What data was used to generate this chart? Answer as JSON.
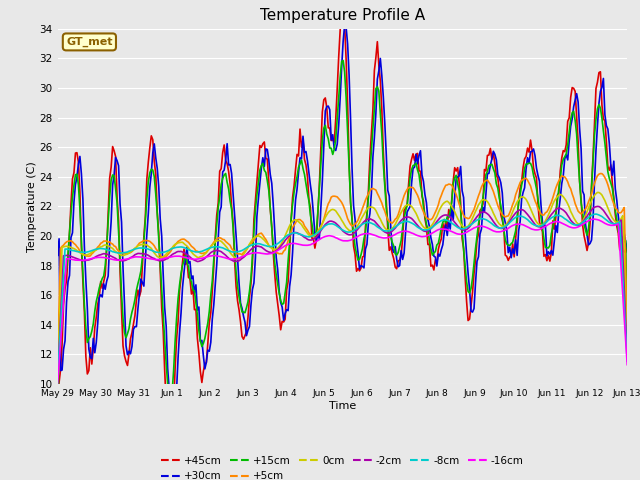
{
  "title": "Temperature Profile A",
  "xlabel": "Time",
  "ylabel": "Temperature (C)",
  "ylim": [
    10,
    34
  ],
  "yticks": [
    10,
    12,
    14,
    16,
    18,
    20,
    22,
    24,
    26,
    28,
    30,
    32,
    34
  ],
  "annotation_text": "GT_met",
  "annotation_color": "#8B6000",
  "annotation_bg": "#FFFFCC",
  "lines": {
    "+45cm": {
      "color": "#DD0000",
      "lw": 1.2
    },
    "+30cm": {
      "color": "#0000DD",
      "lw": 1.2
    },
    "+15cm": {
      "color": "#00BB00",
      "lw": 1.2
    },
    "+5cm": {
      "color": "#FF8800",
      "lw": 1.2
    },
    "0cm": {
      "color": "#CCCC00",
      "lw": 1.2
    },
    "-2cm": {
      "color": "#AA00AA",
      "lw": 1.2
    },
    "-8cm": {
      "color": "#00CCCC",
      "lw": 1.2
    },
    "-16cm": {
      "color": "#FF00FF",
      "lw": 1.2
    }
  },
  "x_tick_labels": [
    "May 29",
    "May 30",
    "May 31",
    "Jun 1",
    "Jun 2",
    "Jun 3",
    "Jun 4",
    "Jun 5",
    "Jun 6",
    "Jun 7",
    "Jun 8",
    "Jun 9",
    "Jun 10",
    "Jun 11",
    "Jun 12",
    "Jun 13"
  ],
  "bg_color": "#E8E8E8",
  "plot_bg": "#E8E8E8",
  "figsize": [
    6.4,
    4.8
  ],
  "dpi": 100
}
